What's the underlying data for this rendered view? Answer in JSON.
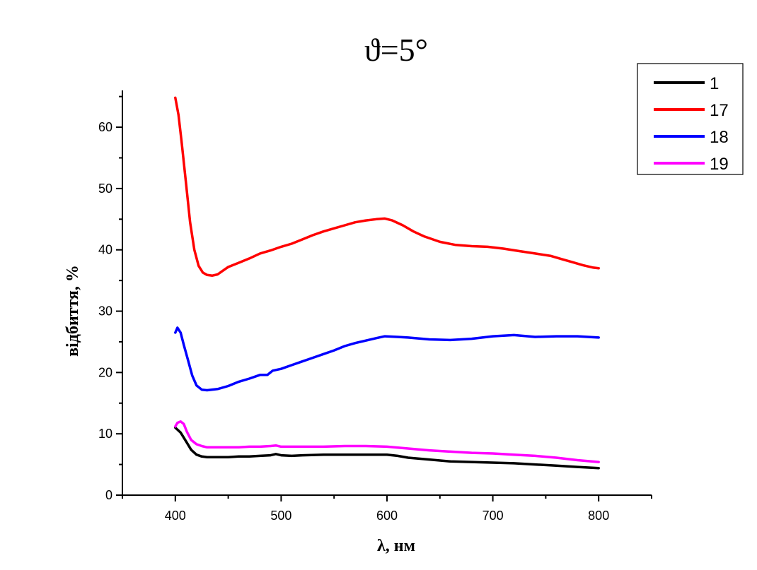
{
  "chart_data": {
    "type": "line",
    "title": "ϑ=5°",
    "xlabel": "λ, нм",
    "ylabel": "відбиття, %",
    "xlim": [
      350,
      850
    ],
    "ylim": [
      0,
      66
    ],
    "x_ticks": [
      400,
      500,
      600,
      700,
      800
    ],
    "y_ticks": [
      0,
      10,
      20,
      30,
      40,
      50,
      60
    ],
    "grid": false,
    "legend_position": "top-right",
    "series": [
      {
        "name": "1",
        "color": "#000000",
        "points": [
          [
            400,
            11.0
          ],
          [
            405,
            10.2
          ],
          [
            410,
            8.8
          ],
          [
            415,
            7.4
          ],
          [
            420,
            6.6
          ],
          [
            425,
            6.3
          ],
          [
            430,
            6.2
          ],
          [
            440,
            6.2
          ],
          [
            450,
            6.2
          ],
          [
            460,
            6.3
          ],
          [
            470,
            6.3
          ],
          [
            480,
            6.4
          ],
          [
            490,
            6.5
          ],
          [
            495,
            6.7
          ],
          [
            500,
            6.5
          ],
          [
            510,
            6.4
          ],
          [
            520,
            6.5
          ],
          [
            540,
            6.6
          ],
          [
            560,
            6.6
          ],
          [
            580,
            6.6
          ],
          [
            600,
            6.6
          ],
          [
            610,
            6.4
          ],
          [
            620,
            6.1
          ],
          [
            640,
            5.8
          ],
          [
            660,
            5.5
          ],
          [
            680,
            5.4
          ],
          [
            700,
            5.3
          ],
          [
            720,
            5.2
          ],
          [
            740,
            5.0
          ],
          [
            760,
            4.8
          ],
          [
            780,
            4.6
          ],
          [
            800,
            4.4
          ]
        ]
      },
      {
        "name": "17",
        "color": "#ff0000",
        "points": [
          [
            400,
            64.8
          ],
          [
            403,
            62.0
          ],
          [
            406,
            57.5
          ],
          [
            410,
            51.0
          ],
          [
            414,
            44.5
          ],
          [
            418,
            40.0
          ],
          [
            422,
            37.4
          ],
          [
            426,
            36.3
          ],
          [
            430,
            35.9
          ],
          [
            435,
            35.8
          ],
          [
            440,
            36.0
          ],
          [
            445,
            36.6
          ],
          [
            450,
            37.2
          ],
          [
            460,
            37.9
          ],
          [
            470,
            38.6
          ],
          [
            480,
            39.4
          ],
          [
            490,
            39.9
          ],
          [
            500,
            40.5
          ],
          [
            510,
            41.0
          ],
          [
            520,
            41.7
          ],
          [
            530,
            42.4
          ],
          [
            540,
            43.0
          ],
          [
            550,
            43.5
          ],
          [
            560,
            44.0
          ],
          [
            570,
            44.5
          ],
          [
            580,
            44.8
          ],
          [
            590,
            45.0
          ],
          [
            598,
            45.1
          ],
          [
            605,
            44.8
          ],
          [
            615,
            44.0
          ],
          [
            625,
            43.0
          ],
          [
            635,
            42.2
          ],
          [
            650,
            41.3
          ],
          [
            665,
            40.8
          ],
          [
            680,
            40.6
          ],
          [
            695,
            40.5
          ],
          [
            710,
            40.2
          ],
          [
            725,
            39.8
          ],
          [
            740,
            39.4
          ],
          [
            755,
            39.0
          ],
          [
            765,
            38.5
          ],
          [
            775,
            38.0
          ],
          [
            785,
            37.5
          ],
          [
            795,
            37.1
          ],
          [
            800,
            37.0
          ]
        ]
      },
      {
        "name": "18",
        "color": "#0000ff",
        "points": [
          [
            400,
            26.5
          ],
          [
            402,
            27.3
          ],
          [
            405,
            26.5
          ],
          [
            408,
            24.5
          ],
          [
            412,
            22.0
          ],
          [
            416,
            19.5
          ],
          [
            420,
            17.9
          ],
          [
            425,
            17.2
          ],
          [
            430,
            17.1
          ],
          [
            440,
            17.3
          ],
          [
            450,
            17.8
          ],
          [
            460,
            18.5
          ],
          [
            470,
            19.0
          ],
          [
            480,
            19.6
          ],
          [
            487,
            19.6
          ],
          [
            492,
            20.3
          ],
          [
            500,
            20.6
          ],
          [
            510,
            21.2
          ],
          [
            520,
            21.8
          ],
          [
            530,
            22.4
          ],
          [
            540,
            23.0
          ],
          [
            550,
            23.6
          ],
          [
            560,
            24.3
          ],
          [
            570,
            24.8
          ],
          [
            580,
            25.2
          ],
          [
            590,
            25.6
          ],
          [
            598,
            25.9
          ],
          [
            610,
            25.8
          ],
          [
            620,
            25.7
          ],
          [
            640,
            25.4
          ],
          [
            660,
            25.3
          ],
          [
            680,
            25.5
          ],
          [
            700,
            25.9
          ],
          [
            720,
            26.1
          ],
          [
            740,
            25.8
          ],
          [
            760,
            25.9
          ],
          [
            780,
            25.9
          ],
          [
            800,
            25.7
          ]
        ]
      },
      {
        "name": "19",
        "color": "#ff00ff",
        "points": [
          [
            400,
            11.2
          ],
          [
            402,
            11.8
          ],
          [
            405,
            12.0
          ],
          [
            408,
            11.6
          ],
          [
            411,
            10.3
          ],
          [
            415,
            9.0
          ],
          [
            420,
            8.3
          ],
          [
            425,
            8.0
          ],
          [
            430,
            7.8
          ],
          [
            440,
            7.8
          ],
          [
            450,
            7.8
          ],
          [
            460,
            7.8
          ],
          [
            470,
            7.9
          ],
          [
            480,
            7.9
          ],
          [
            490,
            8.0
          ],
          [
            495,
            8.1
          ],
          [
            500,
            7.9
          ],
          [
            520,
            7.9
          ],
          [
            540,
            7.9
          ],
          [
            560,
            8.0
          ],
          [
            580,
            8.0
          ],
          [
            600,
            7.9
          ],
          [
            620,
            7.6
          ],
          [
            640,
            7.3
          ],
          [
            660,
            7.1
          ],
          [
            680,
            6.9
          ],
          [
            700,
            6.8
          ],
          [
            720,
            6.6
          ],
          [
            740,
            6.4
          ],
          [
            760,
            6.1
          ],
          [
            780,
            5.7
          ],
          [
            800,
            5.4
          ]
        ]
      }
    ]
  }
}
